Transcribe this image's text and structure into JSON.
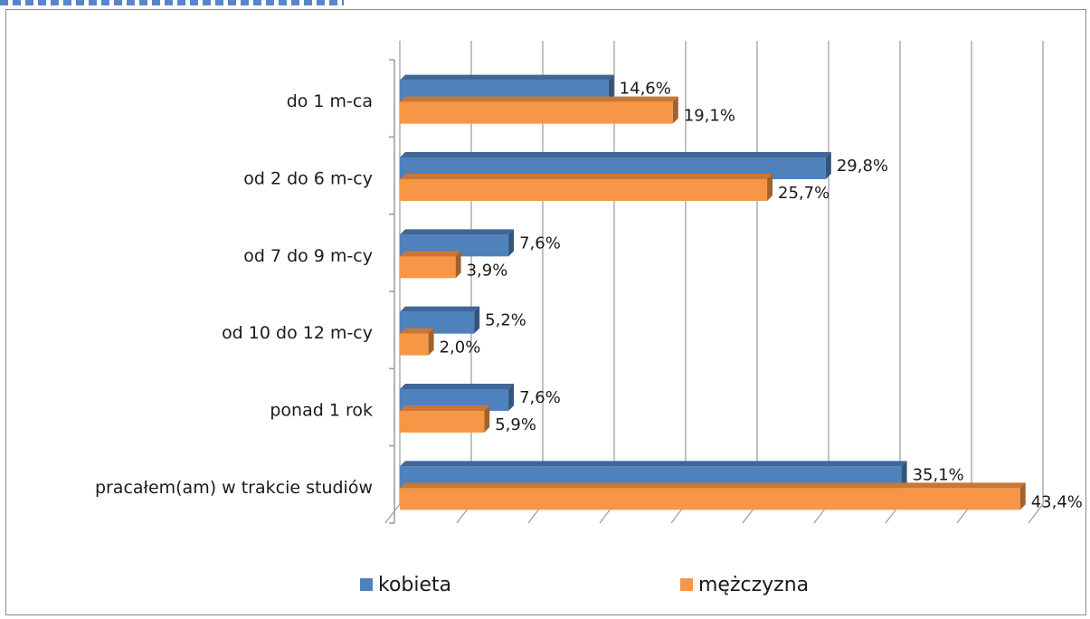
{
  "chart_data": {
    "type": "bar",
    "orientation": "horizontal",
    "style": "3d",
    "categories": [
      "do 1 m-ca",
      "od 2 do 6 m-cy",
      "od 7 do 9 m-cy",
      "od 10 do 12 m-cy",
      "ponad 1 rok",
      "pracałem(am) w trakcie studiów"
    ],
    "series": [
      {
        "name": "kobieta",
        "color": "#4f81bd",
        "values": [
          14.6,
          29.8,
          7.6,
          5.2,
          7.6,
          35.1
        ],
        "labels": [
          "14,6%",
          "29,8%",
          "7,6%",
          "5,2%",
          "7,6%",
          "35,1%"
        ]
      },
      {
        "name": "mężczyzna",
        "color": "#f79646",
        "values": [
          19.1,
          25.7,
          3.9,
          2.0,
          5.9,
          43.4
        ],
        "labels": [
          "19,1%",
          "25,7%",
          "3,9%",
          "2,0%",
          "5,9%",
          "43,4%"
        ]
      }
    ],
    "xlim": [
      0,
      45
    ],
    "grid": true,
    "legend_position": "bottom"
  }
}
